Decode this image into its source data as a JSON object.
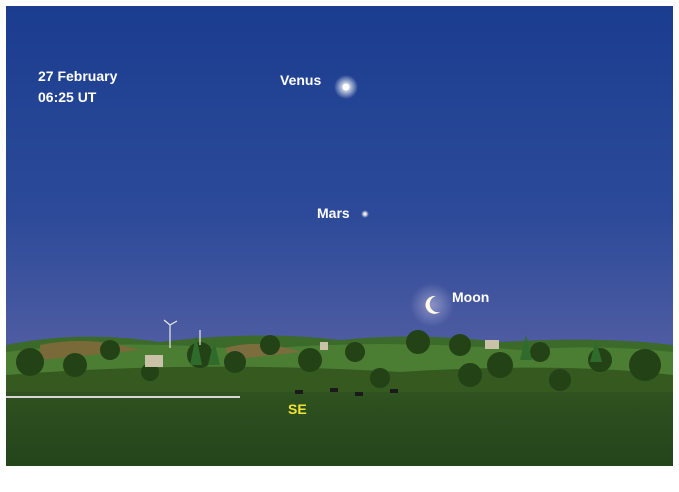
{
  "caption": {
    "date": "27 February",
    "time": "06:25 UT"
  },
  "objects": [
    {
      "label": "Venus"
    },
    {
      "label": "Mars"
    },
    {
      "label": "Moon"
    }
  ],
  "direction": "SE"
}
